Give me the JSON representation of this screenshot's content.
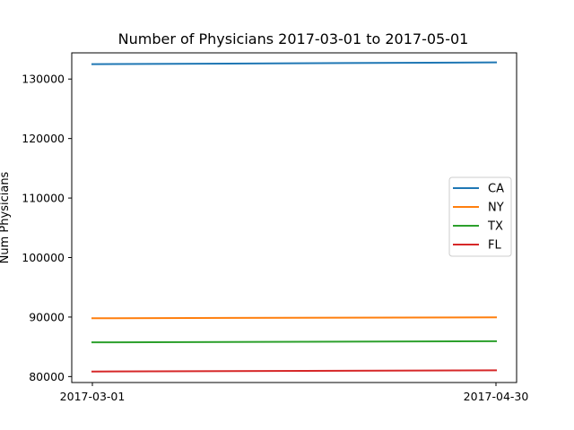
{
  "chart_data": {
    "type": "line",
    "title": "Number of Physicians 2017-03-01 to 2017-05-01",
    "xlabel": "",
    "ylabel": "Num Physicians",
    "x": [
      "2017-03-01",
      "2017-04-30"
    ],
    "xticks": [
      "2017-03-01",
      "2017-04-30"
    ],
    "ylim": [
      79000,
      134400
    ],
    "yticks": [
      80000,
      90000,
      100000,
      110000,
      120000,
      130000
    ],
    "grid": false,
    "legend_position": "center-right",
    "series": [
      {
        "name": "CA",
        "color": "#1f77b4",
        "values": [
          132500,
          132800
        ]
      },
      {
        "name": "NY",
        "color": "#ff7f0e",
        "values": [
          89800,
          89950
        ]
      },
      {
        "name": "TX",
        "color": "#2ca02c",
        "values": [
          85750,
          85950
        ]
      },
      {
        "name": "FL",
        "color": "#d62728",
        "values": [
          80850,
          81050
        ]
      }
    ]
  }
}
